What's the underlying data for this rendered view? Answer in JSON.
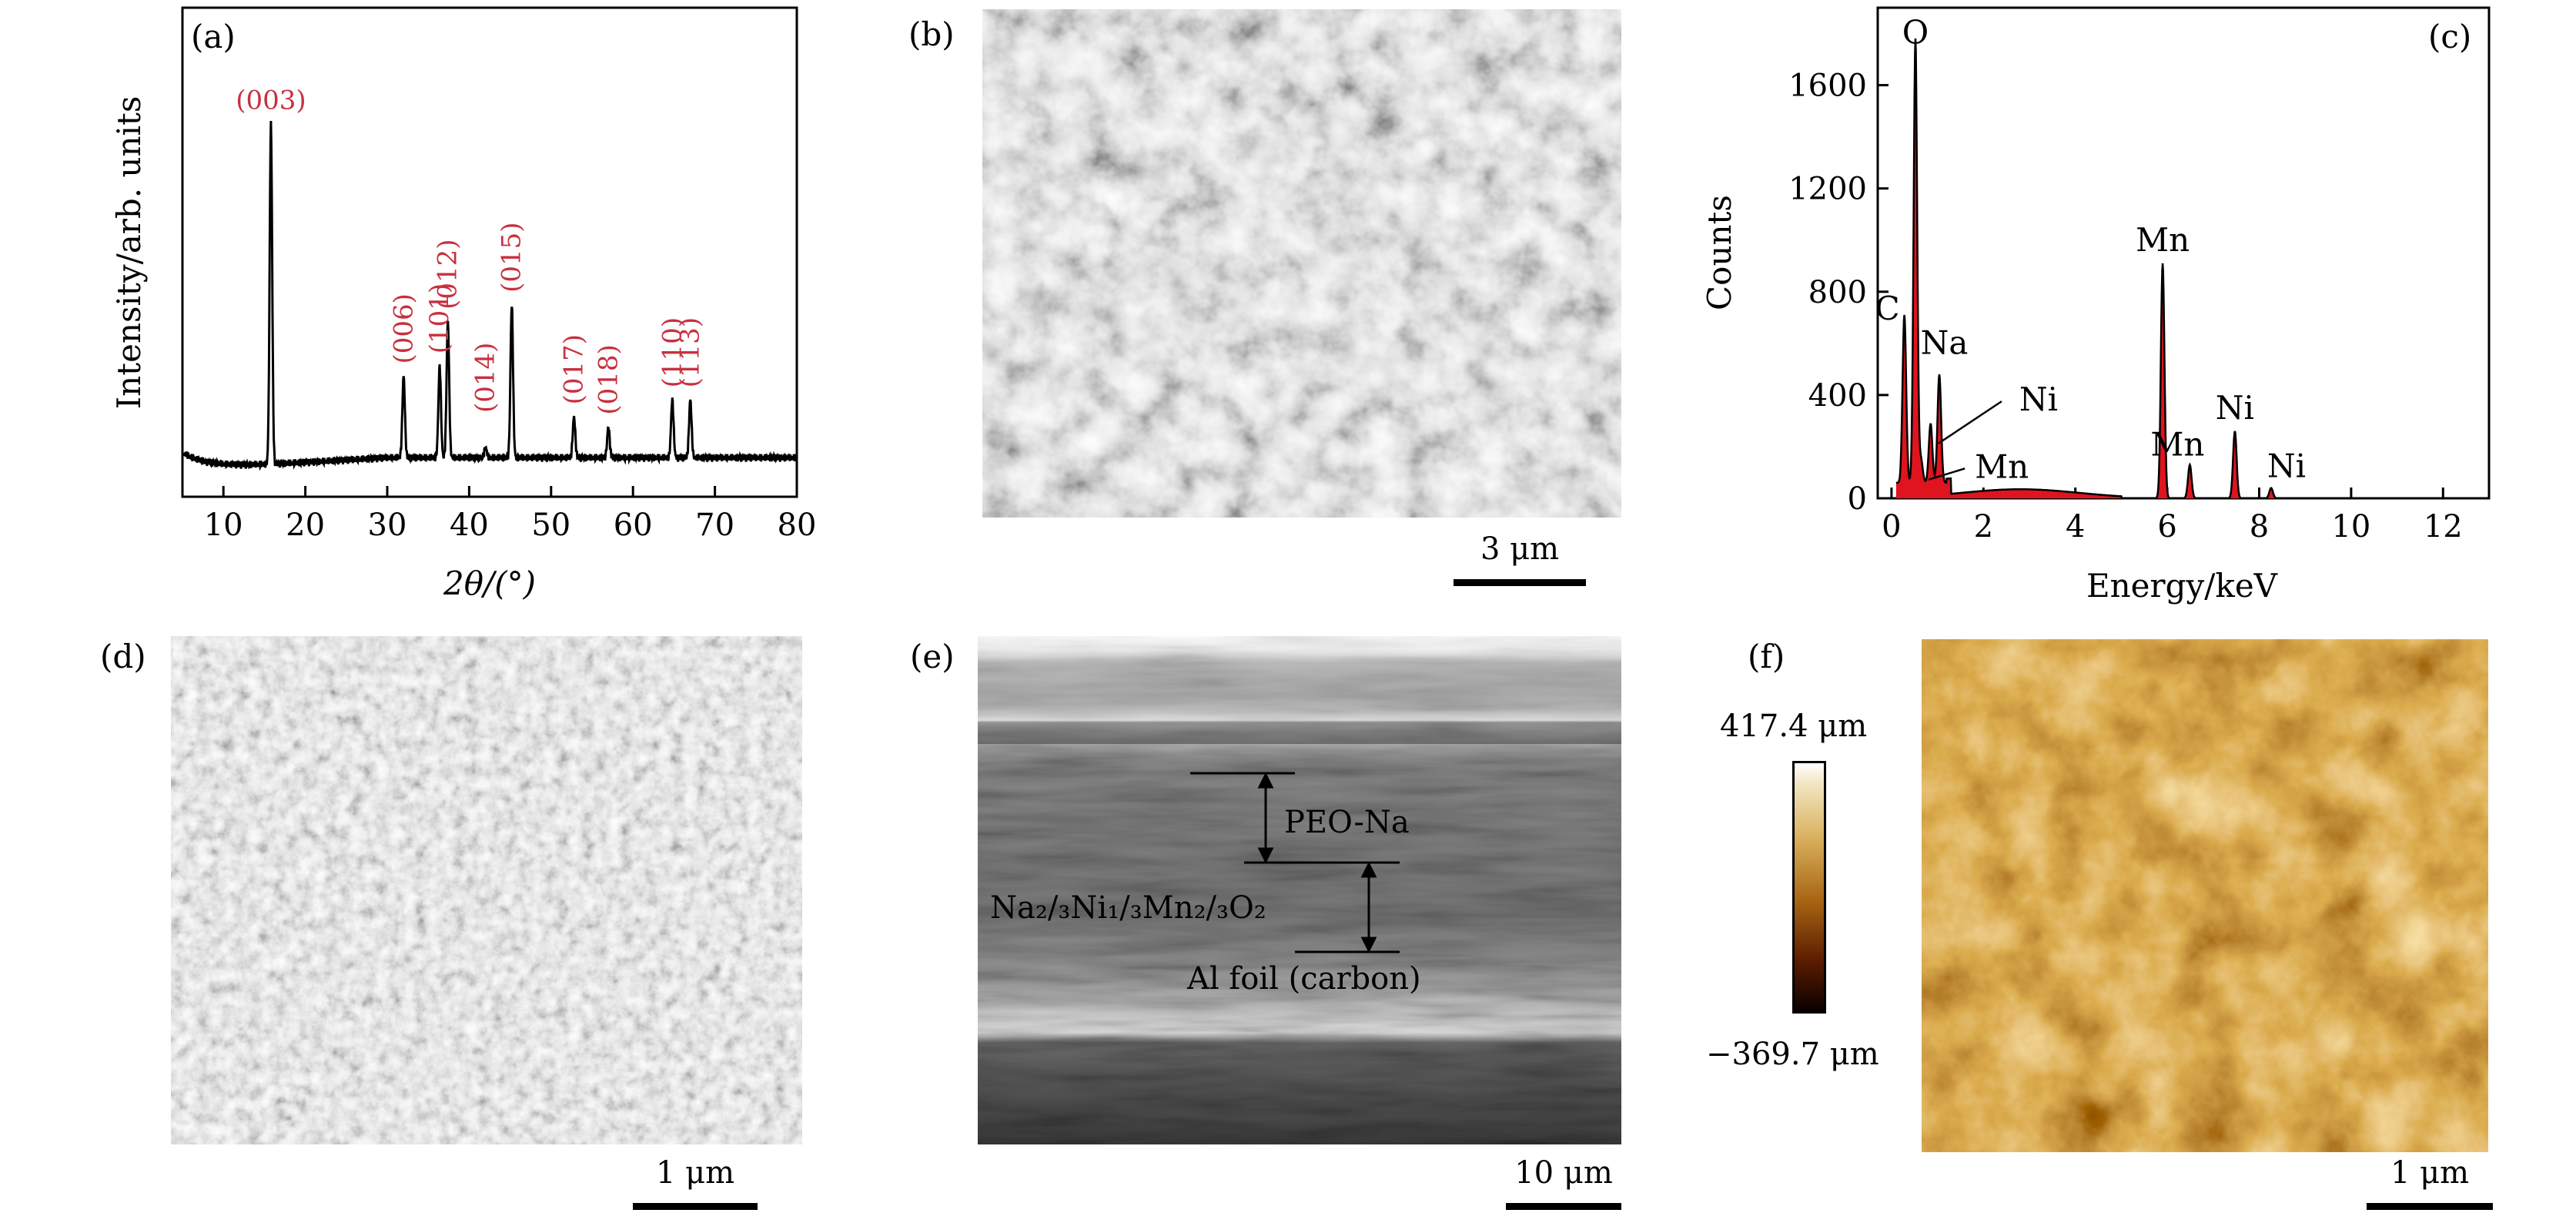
{
  "panels": {
    "a": {
      "label": "(a)",
      "chart_data": {
        "type": "line",
        "xlabel": "2θ/(°)",
        "ylabel": "Intensity/arb. units",
        "xlim": [
          5,
          80
        ],
        "xticks": [
          10,
          20,
          30,
          40,
          50,
          60,
          70,
          80
        ],
        "peaks": [
          {
            "x": 15.8,
            "height": 1.0,
            "label": "(003)"
          },
          {
            "x": 32.0,
            "height": 0.24,
            "label": "(006)"
          },
          {
            "x": 36.4,
            "height": 0.27,
            "label": "(101)"
          },
          {
            "x": 37.4,
            "height": 0.4,
            "label": "(012)"
          },
          {
            "x": 42.0,
            "height": 0.03,
            "label": "(014)"
          },
          {
            "x": 45.2,
            "height": 0.45,
            "label": "(015)"
          },
          {
            "x": 52.8,
            "height": 0.12,
            "label": "(017)"
          },
          {
            "x": 57.0,
            "height": 0.09,
            "label": "(018)"
          },
          {
            "x": 64.8,
            "height": 0.17,
            "label": "(110)"
          },
          {
            "x": 67.0,
            "height": 0.17,
            "label": "(113)"
          }
        ],
        "peak_label_color": "#c8303f"
      }
    },
    "b": {
      "label": "(b)",
      "scale": "3 μm"
    },
    "c": {
      "label": "(c)",
      "chart_data": {
        "type": "area",
        "xlabel": "Energy/keV",
        "ylabel": "Counts",
        "xlim": [
          -0.3,
          13
        ],
        "ylim": [
          0,
          1900
        ],
        "xticks": [
          0,
          2,
          4,
          6,
          8,
          10,
          12
        ],
        "yticks": [
          0,
          400,
          800,
          1200,
          1600
        ],
        "peaks": [
          {
            "x": 0.28,
            "y": 650,
            "label": "C"
          },
          {
            "x": 0.52,
            "y": 1720,
            "label": "O"
          },
          {
            "x": 0.64,
            "y": 90,
            "label": "Mn"
          },
          {
            "x": 0.85,
            "y": 230,
            "label": "Ni"
          },
          {
            "x": 1.04,
            "y": 420,
            "label": "Na"
          },
          {
            "x": 5.9,
            "y": 910,
            "label": "Mn"
          },
          {
            "x": 6.49,
            "y": 130,
            "label": "Mn"
          },
          {
            "x": 7.47,
            "y": 260,
            "label": "Ni"
          },
          {
            "x": 8.26,
            "y": 40,
            "label": "Ni"
          }
        ],
        "fill_color": "#e0141e"
      }
    },
    "d": {
      "label": "(d)",
      "scale": "1 μm"
    },
    "e": {
      "label": "(e)",
      "scale": "10 μm",
      "layer_top": "PEO-Na",
      "layer_mid": "Na₂/₃Ni₁/₃Mn₂/₃O₂",
      "layer_bottom": "Al foil (carbon)"
    },
    "f": {
      "label": "(f)",
      "scale": "1 μm",
      "colorbar_max": "417.4 μm",
      "colorbar_min": "−369.7 μm"
    }
  }
}
